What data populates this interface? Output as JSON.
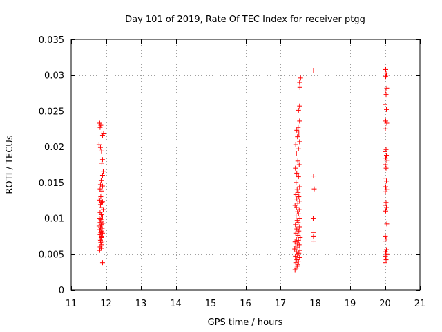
{
  "chart_data": {
    "type": "scatter",
    "title": "Day 101 of 2019, Rate Of TEC Index for receiver ptgg",
    "xlabel": "GPS time / hours",
    "ylabel": "ROTI / TECUs",
    "xlim": [
      11,
      21
    ],
    "ylim": [
      0,
      0.035
    ],
    "grid": true,
    "marker": "+",
    "marker_color": "#ff0000",
    "x_ticks": [
      "11",
      "12",
      "13",
      "14",
      "15",
      "16",
      "17",
      "18",
      "19",
      "20",
      "21"
    ],
    "y_ticks": [
      "0",
      "0.005",
      "0.01",
      "0.015",
      "0.02",
      "0.025",
      "0.03",
      "0.035"
    ],
    "series": [
      {
        "name": "ROTI",
        "points": [
          [
            11.82,
            0.0233
          ],
          [
            11.85,
            0.023
          ],
          [
            11.83,
            0.0227
          ],
          [
            11.88,
            0.0219
          ],
          [
            11.93,
            0.0218
          ],
          [
            11.9,
            0.0216
          ],
          [
            11.8,
            0.0203
          ],
          [
            11.84,
            0.0199
          ],
          [
            11.87,
            0.0194
          ],
          [
            11.9,
            0.0182
          ],
          [
            11.88,
            0.0177
          ],
          [
            11.92,
            0.0165
          ],
          [
            11.9,
            0.016
          ],
          [
            11.86,
            0.0153
          ],
          [
            11.84,
            0.0147
          ],
          [
            11.9,
            0.0145
          ],
          [
            11.83,
            0.0141
          ],
          [
            11.88,
            0.0138
          ],
          [
            11.85,
            0.013
          ],
          [
            11.8,
            0.0127
          ],
          [
            11.82,
            0.0125
          ],
          [
            11.9,
            0.0123
          ],
          [
            11.86,
            0.0122
          ],
          [
            11.84,
            0.0119
          ],
          [
            11.88,
            0.0115
          ],
          [
            11.92,
            0.0112
          ],
          [
            11.83,
            0.0108
          ],
          [
            11.86,
            0.0105
          ],
          [
            11.9,
            0.0103
          ],
          [
            11.81,
            0.01
          ],
          [
            11.85,
            0.0098
          ],
          [
            11.88,
            0.0096
          ],
          [
            11.83,
            0.0094
          ],
          [
            11.91,
            0.0093
          ],
          [
            11.86,
            0.0091
          ],
          [
            11.8,
            0.0089
          ],
          [
            11.84,
            0.0087
          ],
          [
            11.89,
            0.0086
          ],
          [
            11.82,
            0.0084
          ],
          [
            11.87,
            0.0082
          ],
          [
            11.85,
            0.008
          ],
          [
            11.9,
            0.0079
          ],
          [
            11.83,
            0.0077
          ],
          [
            11.88,
            0.0075
          ],
          [
            11.86,
            0.0073
          ],
          [
            11.81,
            0.0071
          ],
          [
            11.84,
            0.0069
          ],
          [
            11.89,
            0.0068
          ],
          [
            11.85,
            0.0066
          ],
          [
            11.87,
            0.0063
          ],
          [
            11.83,
            0.006
          ],
          [
            11.86,
            0.0058
          ],
          [
            11.82,
            0.0055
          ],
          [
            11.9,
            0.0038
          ],
          [
            17.42,
            0.0028
          ],
          [
            17.45,
            0.003
          ],
          [
            17.48,
            0.0033
          ],
          [
            17.5,
            0.0035
          ],
          [
            17.44,
            0.0038
          ],
          [
            17.52,
            0.004
          ],
          [
            17.47,
            0.0042
          ],
          [
            17.55,
            0.0045
          ],
          [
            17.43,
            0.0047
          ],
          [
            17.49,
            0.0049
          ],
          [
            17.53,
            0.0051
          ],
          [
            17.46,
            0.0053
          ],
          [
            17.56,
            0.0055
          ],
          [
            17.41,
            0.0057
          ],
          [
            17.5,
            0.0059
          ],
          [
            17.44,
            0.0061
          ],
          [
            17.54,
            0.0063
          ],
          [
            17.48,
            0.0065
          ],
          [
            17.42,
            0.0067
          ],
          [
            17.52,
            0.0069
          ],
          [
            17.46,
            0.0071
          ],
          [
            17.57,
            0.0073
          ],
          [
            17.5,
            0.0076
          ],
          [
            17.44,
            0.0079
          ],
          [
            17.53,
            0.0082
          ],
          [
            17.47,
            0.0085
          ],
          [
            17.55,
            0.0088
          ],
          [
            17.43,
            0.0091
          ],
          [
            17.51,
            0.0094
          ],
          [
            17.48,
            0.0097
          ],
          [
            17.56,
            0.01
          ],
          [
            17.45,
            0.0103
          ],
          [
            17.52,
            0.0106
          ],
          [
            17.49,
            0.0109
          ],
          [
            17.54,
            0.0112
          ],
          [
            17.46,
            0.0115
          ],
          [
            17.42,
            0.0118
          ],
          [
            17.5,
            0.0121
          ],
          [
            17.55,
            0.0124
          ],
          [
            17.47,
            0.0127
          ],
          [
            17.53,
            0.013
          ],
          [
            17.44,
            0.0133
          ],
          [
            17.51,
            0.0136
          ],
          [
            17.48,
            0.014
          ],
          [
            17.55,
            0.0144
          ],
          [
            17.45,
            0.015
          ],
          [
            17.52,
            0.0158
          ],
          [
            17.47,
            0.0163
          ],
          [
            17.43,
            0.017
          ],
          [
            17.54,
            0.0175
          ],
          [
            17.5,
            0.018
          ],
          [
            17.46,
            0.019
          ],
          [
            17.52,
            0.0197
          ],
          [
            17.44,
            0.0203
          ],
          [
            17.55,
            0.0207
          ],
          [
            17.49,
            0.0214
          ],
          [
            17.53,
            0.0219
          ],
          [
            17.47,
            0.0223
          ],
          [
            17.51,
            0.0227
          ],
          [
            17.55,
            0.0236
          ],
          [
            17.52,
            0.0251
          ],
          [
            17.55,
            0.0257
          ],
          [
            17.56,
            0.0283
          ],
          [
            17.55,
            0.029
          ],
          [
            17.58,
            0.0296
          ],
          [
            17.95,
            0.0306
          ],
          [
            17.95,
            0.0159
          ],
          [
            17.97,
            0.0141
          ],
          [
            17.94,
            0.01
          ],
          [
            17.96,
            0.008
          ],
          [
            17.95,
            0.0075
          ],
          [
            17.96,
            0.0068
          ],
          [
            20.0,
            0.0038
          ],
          [
            20.03,
            0.0042
          ],
          [
            20.01,
            0.0047
          ],
          [
            20.05,
            0.005
          ],
          [
            20.02,
            0.0053
          ],
          [
            20.04,
            0.0056
          ],
          [
            20.0,
            0.0068
          ],
          [
            20.03,
            0.0071
          ],
          [
            20.01,
            0.0075
          ],
          [
            20.05,
            0.0092
          ],
          [
            20.02,
            0.011
          ],
          [
            20.04,
            0.0115
          ],
          [
            20.0,
            0.0118
          ],
          [
            20.03,
            0.0122
          ],
          [
            20.01,
            0.0137
          ],
          [
            20.05,
            0.014
          ],
          [
            20.02,
            0.0144
          ],
          [
            20.04,
            0.0152
          ],
          [
            20.0,
            0.0156
          ],
          [
            20.03,
            0.017
          ],
          [
            20.01,
            0.0175
          ],
          [
            20.05,
            0.0181
          ],
          [
            20.02,
            0.0184
          ],
          [
            20.04,
            0.0188
          ],
          [
            20.0,
            0.0193
          ],
          [
            20.03,
            0.0196
          ],
          [
            20.01,
            0.0225
          ],
          [
            20.05,
            0.0233
          ],
          [
            20.02,
            0.0236
          ],
          [
            20.04,
            0.0252
          ],
          [
            20.0,
            0.0259
          ],
          [
            20.03,
            0.0273
          ],
          [
            20.01,
            0.0278
          ],
          [
            20.05,
            0.0282
          ],
          [
            20.02,
            0.0298
          ],
          [
            20.04,
            0.03
          ],
          [
            20.03,
            0.0303
          ],
          [
            20.02,
            0.0308
          ]
        ]
      }
    ]
  }
}
